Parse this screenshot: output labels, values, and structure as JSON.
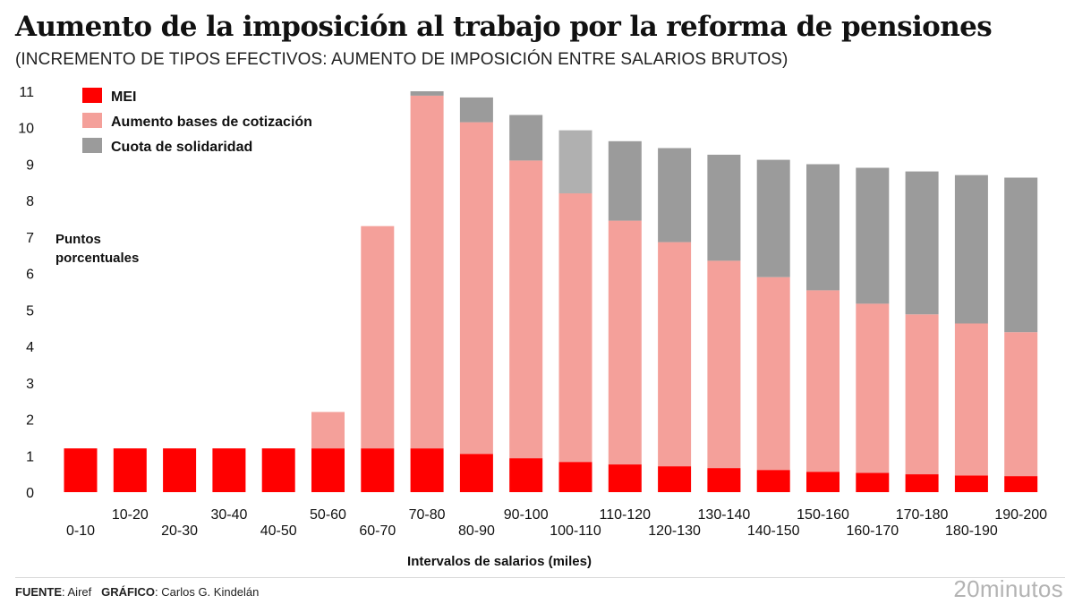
{
  "header": {
    "title": "Aumento de la imposición al trabajo por la reforma de pensiones",
    "subtitle": "(INCREMENTO DE TIPOS EFECTIVOS: AUMENTO DE IMPOSICIÓN ENTRE SALARIOS BRUTOS)"
  },
  "footer": {
    "source_label": "FUENTE",
    "source_value": ": Airef",
    "graphic_label": "GRÁFICO",
    "graphic_value": ": Carlos G. Kindelán",
    "brand": "20minutos"
  },
  "chart_data": {
    "type": "bar",
    "stacked": true,
    "title": "Aumento de la imposición al trabajo por la reforma de pensiones",
    "subtitle": "(INCREMENTO DE TIPOS EFECTIVOS: AUMENTO DE IMPOSICIÓN ENTRE SALARIOS BRUTOS)",
    "xlabel": "Intervalos de salarios (miles)",
    "ylabel": "Puntos porcentuales",
    "ylim": [
      0,
      11
    ],
    "yticks": [
      "0",
      "1",
      "2",
      "3",
      "4",
      "5",
      "6",
      "7",
      "8",
      "9",
      "10",
      "11"
    ],
    "grid": false,
    "legend_position": "top-left",
    "categories": [
      "0-10",
      "10-20",
      "20-30",
      "30-40",
      "40-50",
      "50-60",
      "60-70",
      "70-80",
      "80-90",
      "90-100",
      "100-110",
      "110-120",
      "120-130",
      "130-140",
      "140-150",
      "150-160",
      "160-170",
      "170-180",
      "180-190",
      "190-200"
    ],
    "series": [
      {
        "name": "MEI",
        "color": "#ff0000",
        "values": [
          1.2,
          1.2,
          1.2,
          1.2,
          1.2,
          1.2,
          1.2,
          1.2,
          1.05,
          0.93,
          0.83,
          0.76,
          0.71,
          0.66,
          0.61,
          0.56,
          0.53,
          0.49,
          0.46,
          0.44
        ]
      },
      {
        "name": "Aumento bases de cotización",
        "color": "#f4a09a",
        "values": [
          0,
          0,
          0,
          0,
          0,
          1.0,
          6.1,
          9.68,
          9.1,
          8.17,
          7.37,
          6.69,
          6.15,
          5.69,
          5.29,
          4.98,
          4.64,
          4.39,
          4.17,
          3.95
        ]
      },
      {
        "name": "Cuota de solidaridad",
        "color": "#9b9b9b",
        "values": [
          0,
          0,
          0,
          0,
          0,
          0,
          0,
          0.12,
          0.68,
          1.25,
          1.73,
          2.18,
          2.58,
          2.91,
          3.22,
          3.46,
          3.73,
          3.92,
          4.07,
          4.24
        ]
      }
    ],
    "highlight": {
      "category": "100-110",
      "series": "Cuota de solidaridad",
      "color": "#b0b0b0"
    }
  }
}
